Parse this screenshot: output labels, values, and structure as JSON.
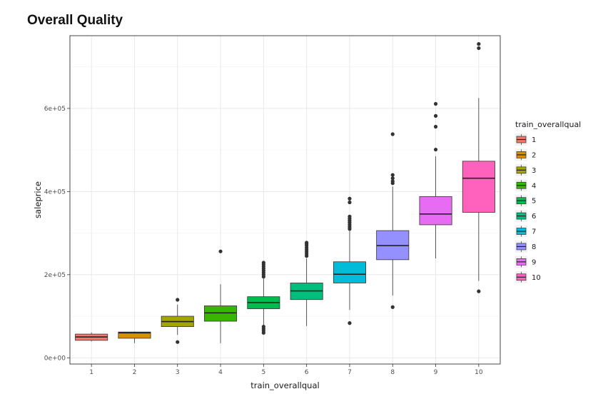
{
  "title": "Overall Quality",
  "chart_data": {
    "type": "box",
    "title": "Overall Quality",
    "xlabel": "train_overallqual",
    "ylabel": "saleprice",
    "ylim": [
      -15000,
      775000
    ],
    "yticks": [
      0,
      200000,
      400000,
      600000
    ],
    "ytick_labels": [
      "0e+00",
      "2e+05",
      "4e+05",
      "6e+05"
    ],
    "categories": [
      "1",
      "2",
      "3",
      "4",
      "5",
      "6",
      "7",
      "8",
      "9",
      "10"
    ],
    "grid": true,
    "legend": {
      "title": "train_overallqual",
      "position": "right"
    },
    "boxes": [
      {
        "category": "1",
        "color": "#F8766D",
        "whisker_low": 39300,
        "q1": 42000,
        "median": 50150,
        "q3": 57000,
        "whisker_high": 61000,
        "outliers": []
      },
      {
        "category": "2",
        "color": "#D89000",
        "whisker_low": 35300,
        "q1": 47000,
        "median": 60000,
        "q3": 62000,
        "whisker_high": 63000,
        "outliers": []
      },
      {
        "category": "3",
        "color": "#A3A500",
        "whisker_low": 55000,
        "q1": 75000,
        "median": 87000,
        "q3": 100000,
        "whisker_high": 128000,
        "outliers": [
          37900,
          139600
        ]
      },
      {
        "category": "4",
        "color": "#39B600",
        "whisker_low": 35000,
        "q1": 88000,
        "median": 108000,
        "q3": 125000,
        "whisker_high": 177000,
        "outliers": [
          256000
        ]
      },
      {
        "category": "5",
        "color": "#00BB4E",
        "whisker_low": 76000,
        "q1": 118000,
        "median": 133000,
        "q3": 147000,
        "whisker_high": 190000,
        "outliers": [
          60000,
          65000,
          70000,
          75000,
          195000,
          200000,
          205000,
          210000,
          215000,
          220000,
          225000,
          229000
        ]
      },
      {
        "category": "6",
        "color": "#00BF7D",
        "whisker_low": 76500,
        "q1": 140000,
        "median": 161000,
        "q3": 180000,
        "whisker_high": 239000,
        "outliers": [
          245000,
          250000,
          255000,
          260000,
          265000,
          270000,
          274000,
          277000
        ]
      },
      {
        "category": "7",
        "color": "#00BCD8",
        "whisker_low": 115000,
        "q1": 180000,
        "median": 201000,
        "q3": 231000,
        "whisker_high": 305000,
        "outliers": [
          83500,
          310000,
          315000,
          320000,
          325000,
          330000,
          335000,
          340000,
          374000,
          383000
        ]
      },
      {
        "category": "8",
        "color": "#9590FF",
        "whisker_low": 150000,
        "q1": 236000,
        "median": 270000,
        "q3": 306000,
        "whisker_high": 412000,
        "outliers": [
          122000,
          420000,
          425000,
          432000,
          440000,
          538000
        ]
      },
      {
        "category": "9",
        "color": "#E76BF3",
        "whisker_low": 239000,
        "q1": 320000,
        "median": 346000,
        "q3": 388000,
        "whisker_high": 485000,
        "outliers": [
          501000,
          556000,
          582000,
          611000
        ]
      },
      {
        "category": "10",
        "color": "#FF62BC",
        "whisker_low": 185000,
        "q1": 350000,
        "median": 432000,
        "q3": 473000,
        "whisker_high": 625000,
        "outliers": [
          160000,
          745000,
          755000
        ]
      }
    ]
  }
}
